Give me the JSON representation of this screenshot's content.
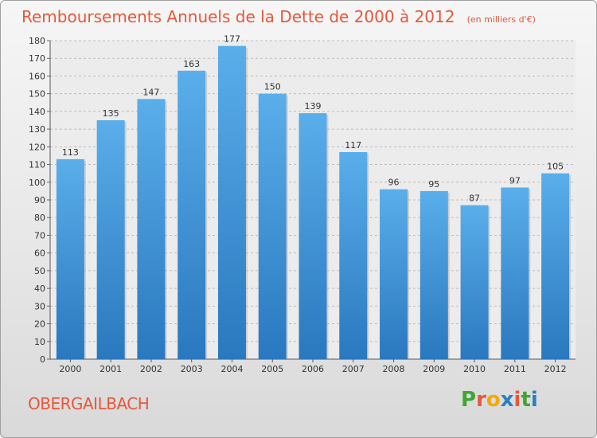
{
  "header": {
    "title": "Remboursements Annuels de la Dette de 2000 à 2012",
    "subtitle": "(en milliers d'€)"
  },
  "commune": "OBERGAILBACH",
  "logo": {
    "letters": [
      "P",
      "r",
      "o",
      "x",
      "i",
      "t",
      "i"
    ],
    "colors": [
      "#3fa535",
      "#e8573a",
      "#f5a800",
      "#2a7fc4",
      "#e8573a",
      "#3fa535",
      "#2a7fc4"
    ]
  },
  "chart_data": {
    "type": "bar",
    "categories": [
      "2000",
      "2001",
      "2002",
      "2003",
      "2004",
      "2005",
      "2006",
      "2007",
      "2008",
      "2009",
      "2010",
      "2011",
      "2012"
    ],
    "values": [
      113,
      135,
      147,
      163,
      177,
      150,
      139,
      117,
      96,
      95,
      87,
      97,
      105
    ],
    "ylim": [
      0,
      180
    ],
    "yticks": [
      0,
      10,
      20,
      30,
      40,
      50,
      60,
      70,
      80,
      90,
      100,
      110,
      120,
      130,
      140,
      150,
      160,
      170,
      180
    ],
    "grid": true,
    "bar_color": "#4a9fe0"
  }
}
